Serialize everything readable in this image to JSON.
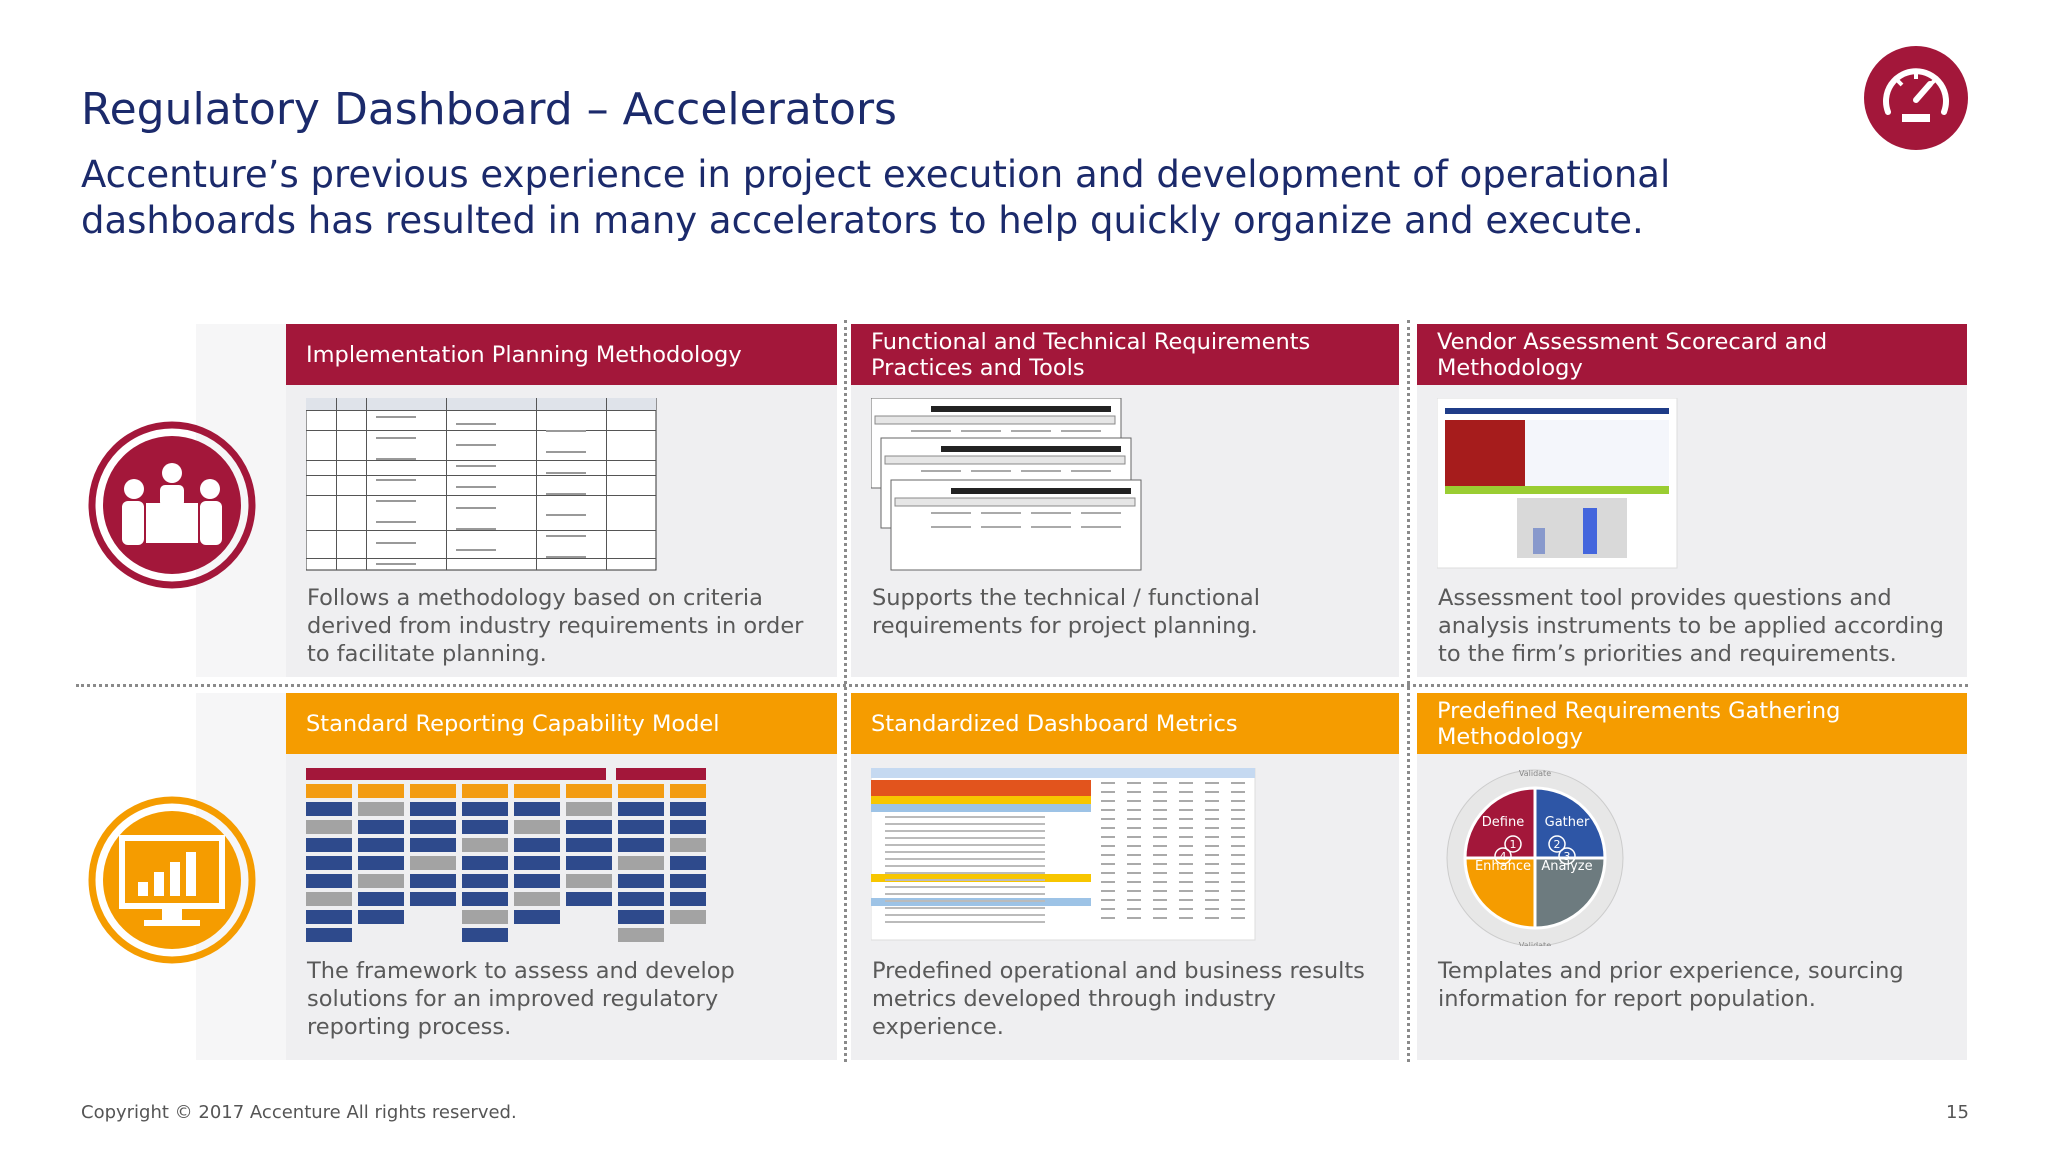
{
  "header": {
    "title": "Regulatory Dashboard – Accelerators",
    "subtitle": "Accenture’s previous experience in project execution and development of operational dashboards has resulted in many accelerators to help quickly organize and execute."
  },
  "cards": [
    {
      "title": "Implementation Planning Methodology",
      "description": "Follows a methodology based on criteria derived from industry requirements in order to facilitate planning."
    },
    {
      "title": "Functional and Technical Requirements Practices and Tools",
      "description": "Supports the technical / functional requirements for project planning."
    },
    {
      "title": "Vendor Assessment Scorecard and Methodology",
      "description": "Assessment tool provides questions and analysis instruments to be applied according to the firm’s priorities and requirements."
    },
    {
      "title": "Standard Reporting Capability Model",
      "description": "The framework to assess and develop solutions for an improved regulatory reporting process."
    },
    {
      "title": "Standardized Dashboard Metrics",
      "description": "Predefined operational and business results metrics developed through industry experience."
    },
    {
      "title": "Predefined Requirements Gathering Methodology",
      "description": "Templates and prior experience, sourcing information for report population."
    }
  ],
  "diagram": {
    "ring_label": "Validate",
    "quadrants": [
      {
        "label": "Define",
        "number": 1
      },
      {
        "label": "Gather",
        "number": 2
      },
      {
        "label": "Analyze",
        "number": 3
      },
      {
        "label": "Enhance",
        "number": 4
      }
    ]
  },
  "footer": {
    "copyright": "Copyright © 2017 Accenture  All rights reserved.",
    "page": 15
  }
}
